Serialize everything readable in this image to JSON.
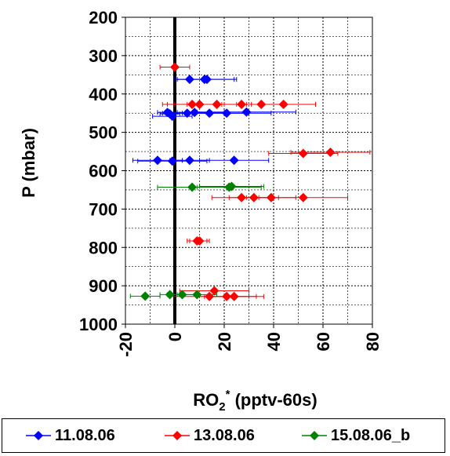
{
  "chart_data": {
    "type": "scatter",
    "title": "",
    "xlabel_main": "RO",
    "xlabel_sub": "2",
    "xlabel_sup": "*",
    "xlabel_rest": " (pptv-60s)",
    "ylabel": "P (mbar)",
    "xlim": [
      -20,
      80
    ],
    "ylim": [
      200,
      1000
    ],
    "y_reversed": true,
    "x_ticks": [
      "-20",
      "0",
      "20",
      "40",
      "60",
      "80"
    ],
    "y_ticks": [
      "200",
      "300",
      "400",
      "500",
      "600",
      "700",
      "800",
      "900",
      "1000"
    ],
    "grid": true,
    "legend_position": "bottom",
    "series": [
      {
        "name": "11.08.06",
        "color": "#0000ff",
        "points": [
          {
            "x": 6,
            "y": 362,
            "err": 6
          },
          {
            "x": 12,
            "y": 362,
            "err": 12
          },
          {
            "x": 13,
            "y": 362,
            "err": 12
          },
          {
            "x": -3,
            "y": 448,
            "err": 4
          },
          {
            "x": -2,
            "y": 452,
            "err": 4
          },
          {
            "x": -1,
            "y": 458,
            "err": 8
          },
          {
            "x": 5,
            "y": 450,
            "err": 10
          },
          {
            "x": 8,
            "y": 448,
            "err": 12
          },
          {
            "x": 14,
            "y": 450,
            "err": 16
          },
          {
            "x": 21,
            "y": 450,
            "err": 18
          },
          {
            "x": 29,
            "y": 447,
            "err": 20
          },
          {
            "x": -7,
            "y": 573,
            "err": 10
          },
          {
            "x": -1,
            "y": 575,
            "err": 14
          },
          {
            "x": 6,
            "y": 573,
            "err": 8
          },
          {
            "x": 24,
            "y": 573,
            "err": 14
          }
        ]
      },
      {
        "name": "13.08.06",
        "color": "#ff0000",
        "points": [
          {
            "x": 0,
            "y": 330,
            "err": 6
          },
          {
            "x": 7,
            "y": 427,
            "err": 12
          },
          {
            "x": 10,
            "y": 427,
            "err": 10
          },
          {
            "x": 17,
            "y": 427,
            "err": 12
          },
          {
            "x": 27,
            "y": 427,
            "err": 30
          },
          {
            "x": 35,
            "y": 427,
            "err": 10
          },
          {
            "x": 44,
            "y": 427,
            "err": 13
          },
          {
            "x": 52,
            "y": 555,
            "err": 14
          },
          {
            "x": 63,
            "y": 552,
            "err": 16
          },
          {
            "x": 27,
            "y": 670,
            "err": 12
          },
          {
            "x": 32,
            "y": 670,
            "err": 10
          },
          {
            "x": 39,
            "y": 670,
            "err": 10
          },
          {
            "x": 52,
            "y": 670,
            "err": 18
          },
          {
            "x": 9,
            "y": 783,
            "err": 4
          },
          {
            "x": 10,
            "y": 783,
            "err": 4
          },
          {
            "x": 16,
            "y": 913,
            "err": 14
          },
          {
            "x": 14,
            "y": 928,
            "err": 16
          },
          {
            "x": 21,
            "y": 928,
            "err": 12
          },
          {
            "x": 24,
            "y": 928,
            "err": 12
          }
        ]
      },
      {
        "name": "15.08.06_b",
        "color": "#008000",
        "points": [
          {
            "x": 7,
            "y": 643,
            "err": 14
          },
          {
            "x": 22,
            "y": 643,
            "err": 13
          },
          {
            "x": 23,
            "y": 641,
            "err": 13
          },
          {
            "x": -12,
            "y": 927,
            "err": 6
          },
          {
            "x": -2,
            "y": 923,
            "err": 4
          },
          {
            "x": 3,
            "y": 923,
            "err": 6
          },
          {
            "x": 9,
            "y": 923,
            "err": 8
          }
        ]
      }
    ]
  }
}
